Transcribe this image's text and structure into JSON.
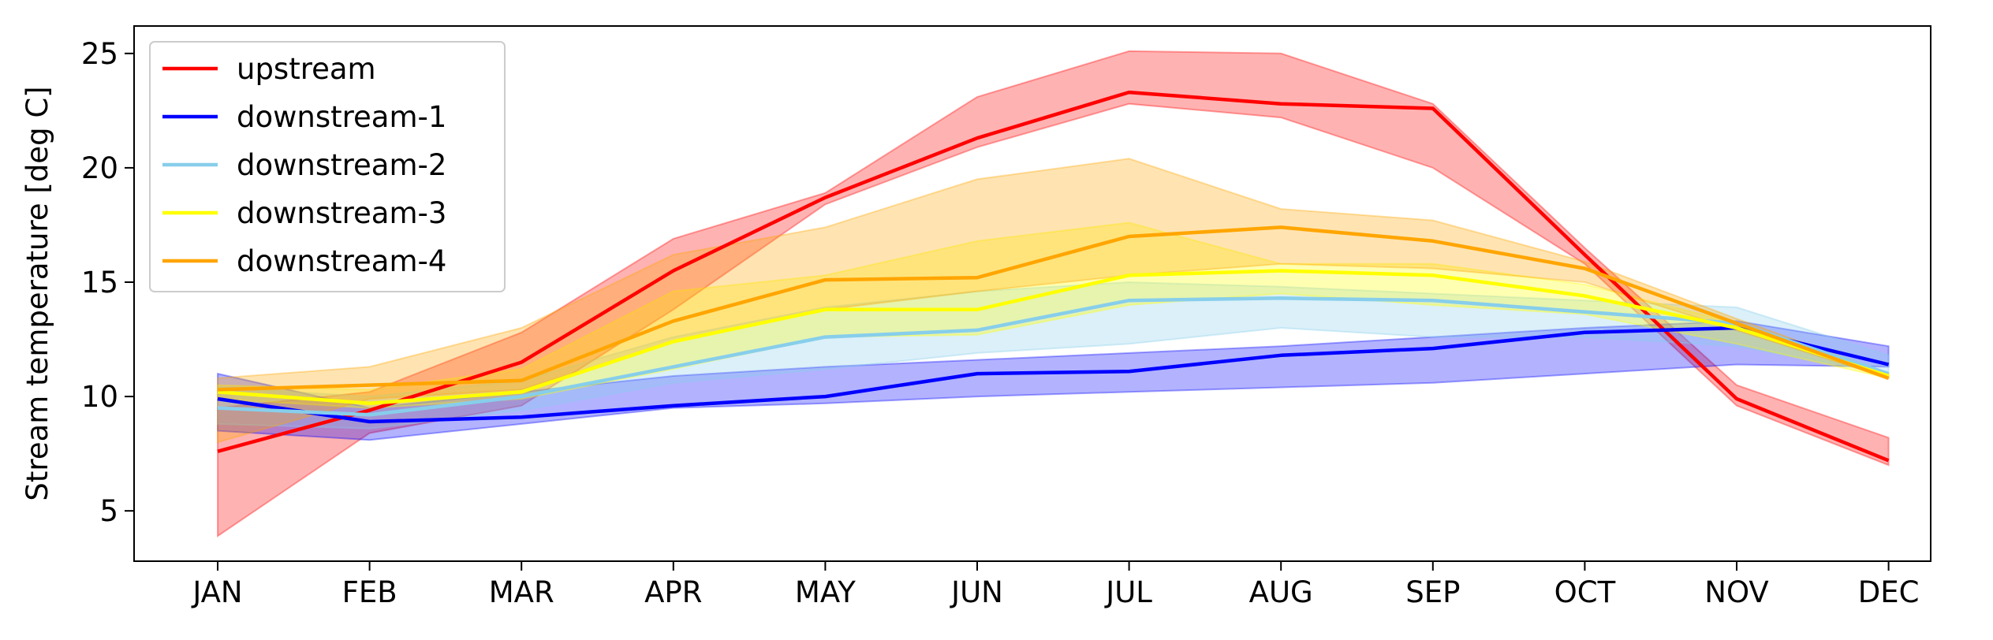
{
  "chart_data": {
    "type": "line",
    "title": "",
    "xlabel": "",
    "ylabel": "Stream temperature [deg C]",
    "categories": [
      "JAN",
      "FEB",
      "MAR",
      "APR",
      "MAY",
      "JUN",
      "JUL",
      "AUG",
      "SEP",
      "OCT",
      "NOV",
      "DEC"
    ],
    "ylim": [
      2.8,
      26.2
    ],
    "yticks": [
      5,
      10,
      15,
      20,
      25
    ],
    "grid": false,
    "legend_position": "top-left",
    "series": [
      {
        "name": "upstream",
        "color": "#ff0000",
        "values": [
          7.6,
          9.4,
          11.5,
          15.5,
          18.7,
          21.3,
          23.3,
          22.8,
          22.6,
          16.2,
          9.9,
          7.2
        ],
        "upper": [
          9.5,
          10.2,
          12.8,
          16.9,
          18.9,
          23.1,
          25.1,
          25.0,
          22.8,
          16.5,
          10.5,
          8.2
        ],
        "lower": [
          3.9,
          8.4,
          9.6,
          13.8,
          18.4,
          20.9,
          22.8,
          22.2,
          20.0,
          15.8,
          9.6,
          7.0
        ]
      },
      {
        "name": "downstream-1",
        "color": "#0000ff",
        "values": [
          9.9,
          8.9,
          9.1,
          9.6,
          10.0,
          11.0,
          11.1,
          11.8,
          12.1,
          12.8,
          13.0,
          11.4
        ],
        "upper": [
          11.0,
          9.5,
          10.2,
          10.9,
          11.3,
          11.6,
          11.9,
          12.2,
          12.6,
          13.0,
          13.3,
          12.2
        ],
        "lower": [
          8.5,
          8.1,
          8.8,
          9.5,
          9.7,
          10.0,
          10.2,
          10.4,
          10.6,
          11.0,
          11.4,
          11.3
        ]
      },
      {
        "name": "downstream-2",
        "color": "#87ceeb",
        "values": [
          9.5,
          9.2,
          10.0,
          11.3,
          12.6,
          12.9,
          14.2,
          14.3,
          14.2,
          13.7,
          13.2,
          11.0
        ],
        "upper": [
          10.4,
          10.0,
          10.7,
          12.6,
          13.9,
          14.6,
          15.0,
          14.8,
          14.5,
          14.2,
          13.9,
          11.8
        ],
        "lower": [
          8.8,
          8.6,
          9.4,
          10.6,
          11.2,
          11.9,
          12.3,
          13.0,
          12.6,
          12.6,
          12.2,
          11.0
        ]
      },
      {
        "name": "downstream-3",
        "color": "#ffff00",
        "values": [
          10.2,
          9.7,
          10.2,
          12.4,
          13.8,
          13.8,
          15.3,
          15.5,
          15.3,
          14.4,
          13.0,
          10.9
        ],
        "upper": [
          10.5,
          10.3,
          11.2,
          14.6,
          15.3,
          16.8,
          17.6,
          15.8,
          15.8,
          14.9,
          13.2,
          11.0
        ],
        "lower": [
          9.9,
          9.5,
          9.9,
          11.2,
          12.6,
          12.7,
          14.0,
          14.5,
          14.0,
          13.6,
          12.3,
          10.8
        ]
      },
      {
        "name": "downstream-4",
        "color": "#ffa500",
        "values": [
          10.3,
          10.5,
          10.7,
          13.3,
          15.1,
          15.2,
          17.0,
          17.4,
          16.8,
          15.6,
          13.2,
          10.8
        ],
        "upper": [
          10.8,
          11.3,
          13.0,
          16.2,
          17.4,
          19.5,
          20.4,
          18.2,
          17.7,
          15.9,
          13.4,
          11.0
        ],
        "lower": [
          8.0,
          9.9,
          10.3,
          12.4,
          13.8,
          14.6,
          15.3,
          15.8,
          15.6,
          15.0,
          12.9,
          10.8
        ]
      }
    ]
  }
}
